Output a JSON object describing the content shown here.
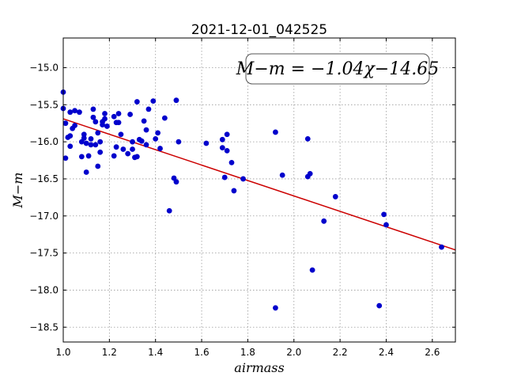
{
  "chart_data": {
    "type": "scatter",
    "title": "2021-12-01_042525",
    "xlabel": "airmass",
    "ylabel": "M−m",
    "xlim": [
      1.0,
      2.7
    ],
    "ylim": [
      -18.7,
      -14.6
    ],
    "y_inverted": false,
    "grid": true,
    "xticks": [
      "1.0",
      "1.2",
      "1.4",
      "1.6",
      "1.8",
      "2.0",
      "2.2",
      "2.4",
      "2.6"
    ],
    "yticks": [
      "−15.0",
      "−15.5",
      "−16.0",
      "−16.5",
      "−17.0",
      "−17.5",
      "−18.0",
      "−18.5"
    ],
    "annotation": "M−m = −1.04χ−14.65",
    "fit": {
      "slope": -1.04,
      "intercept": -14.65,
      "color": "#cc0000"
    },
    "point_color": "#0000cc",
    "points": [
      [
        1.0,
        -15.33
      ],
      [
        1.0,
        -15.55
      ],
      [
        1.01,
        -15.75
      ],
      [
        1.01,
        -16.22
      ],
      [
        1.02,
        -15.94
      ],
      [
        1.03,
        -15.92
      ],
      [
        1.03,
        -15.6
      ],
      [
        1.04,
        -15.82
      ],
      [
        1.05,
        -15.78
      ],
      [
        1.05,
        -15.58
      ],
      [
        1.03,
        -16.06
      ],
      [
        1.07,
        -15.6
      ],
      [
        1.08,
        -16.0
      ],
      [
        1.08,
        -16.2
      ],
      [
        1.09,
        -15.9
      ],
      [
        1.09,
        -15.95
      ],
      [
        1.1,
        -16.02
      ],
      [
        1.1,
        -16.41
      ],
      [
        1.11,
        -16.19
      ],
      [
        1.12,
        -16.04
      ],
      [
        1.12,
        -15.96
      ],
      [
        1.13,
        -15.67
      ],
      [
        1.13,
        -15.56
      ],
      [
        1.14,
        -15.73
      ],
      [
        1.14,
        -16.04
      ],
      [
        1.15,
        -16.33
      ],
      [
        1.15,
        -15.88
      ],
      [
        1.16,
        -16.0
      ],
      [
        1.16,
        -16.14
      ],
      [
        1.17,
        -15.77
      ],
      [
        1.17,
        -15.73
      ],
      [
        1.18,
        -15.62
      ],
      [
        1.18,
        -15.69
      ],
      [
        1.19,
        -15.79
      ],
      [
        1.22,
        -16.19
      ],
      [
        1.22,
        -15.66
      ],
      [
        1.23,
        -15.74
      ],
      [
        1.23,
        -16.07
      ],
      [
        1.24,
        -15.62
      ],
      [
        1.24,
        -15.74
      ],
      [
        1.25,
        -15.9
      ],
      [
        1.26,
        -16.1
      ],
      [
        1.28,
        -16.16
      ],
      [
        1.29,
        -15.63
      ],
      [
        1.3,
        -16.0
      ],
      [
        1.3,
        -16.1
      ],
      [
        1.31,
        -16.21
      ],
      [
        1.32,
        -15.46
      ],
      [
        1.32,
        -16.2
      ],
      [
        1.33,
        -15.97
      ],
      [
        1.34,
        -15.99
      ],
      [
        1.35,
        -15.72
      ],
      [
        1.36,
        -16.04
      ],
      [
        1.36,
        -15.84
      ],
      [
        1.37,
        -15.56
      ],
      [
        1.39,
        -15.45
      ],
      [
        1.4,
        -15.96
      ],
      [
        1.41,
        -15.88
      ],
      [
        1.42,
        -16.09
      ],
      [
        1.44,
        -15.68
      ],
      [
        1.46,
        -16.93
      ],
      [
        1.48,
        -16.49
      ],
      [
        1.49,
        -16.54
      ],
      [
        1.49,
        -15.44
      ],
      [
        1.5,
        -16.0
      ],
      [
        1.62,
        -16.02
      ],
      [
        1.69,
        -15.97
      ],
      [
        1.69,
        -16.08
      ],
      [
        1.7,
        -16.48
      ],
      [
        1.71,
        -16.12
      ],
      [
        1.71,
        -15.9
      ],
      [
        1.73,
        -16.28
      ],
      [
        1.74,
        -16.66
      ],
      [
        1.78,
        -16.5
      ],
      [
        1.92,
        -15.87
      ],
      [
        1.92,
        -18.24
      ],
      [
        1.95,
        -16.45
      ],
      [
        2.06,
        -15.96
      ],
      [
        2.06,
        -16.47
      ],
      [
        2.07,
        -16.43
      ],
      [
        2.08,
        -17.73
      ],
      [
        2.13,
        -17.07
      ],
      [
        2.18,
        -16.74
      ],
      [
        2.37,
        -18.21
      ],
      [
        2.39,
        -16.98
      ],
      [
        2.4,
        -17.12
      ],
      [
        2.64,
        -17.42
      ]
    ]
  }
}
